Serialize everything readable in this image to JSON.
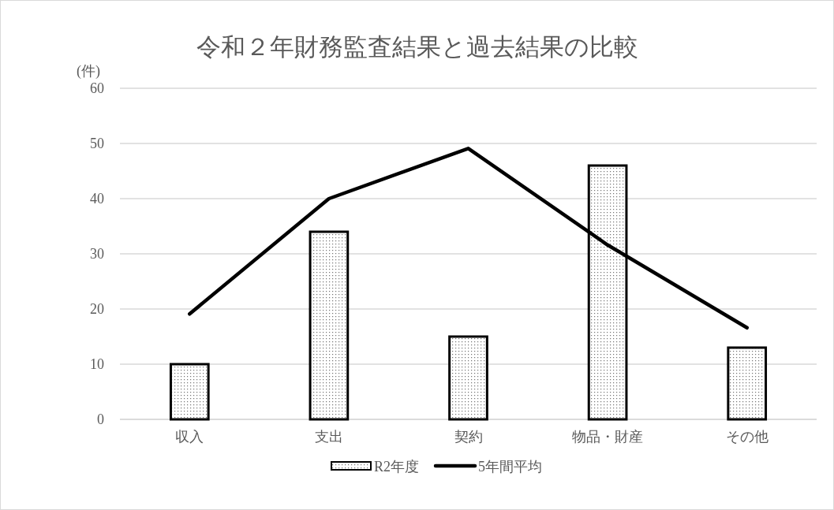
{
  "chart_data": {
    "type": "bar",
    "title": "令和２年財務監査結果と過去結果の比較",
    "ylabel": "(件)",
    "categories": [
      "収入",
      "支出",
      "契約",
      "物品・財産",
      "その他"
    ],
    "series": [
      {
        "name": "R2年度",
        "color": "#000000",
        "values": [
          10,
          34,
          15,
          46,
          13
        ]
      },
      {
        "name": "5年間平均",
        "type": "line",
        "color": "#000000",
        "values": [
          19.1,
          40,
          49.1,
          31.6,
          16.6
        ]
      }
    ],
    "ylim": [
      0,
      60
    ],
    "yticks": [
      0,
      10,
      20,
      30,
      40,
      50,
      60
    ],
    "grid": "y",
    "legend": "bottom"
  }
}
